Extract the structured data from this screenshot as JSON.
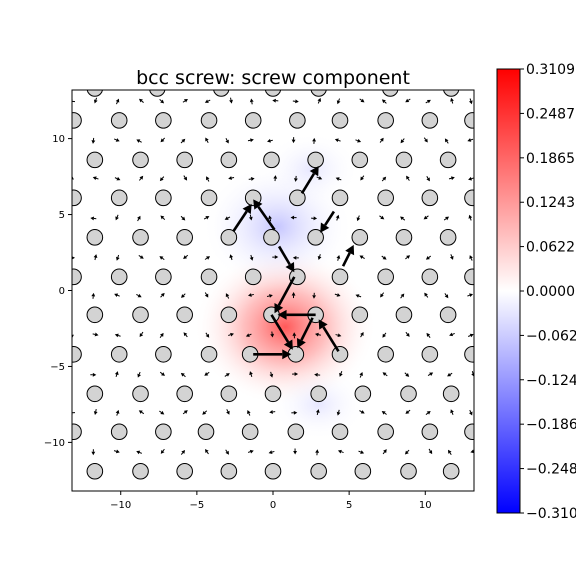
{
  "chart_data": {
    "type": "heatmap",
    "title": "bcc screw: screw component",
    "xlabel": "",
    "ylabel": "",
    "xlim": [
      -13.2,
      13.2
    ],
    "ylim": [
      -13.2,
      13.2
    ],
    "x_ticks": [
      -10,
      -5,
      0,
      5,
      10
    ],
    "y_ticks": [
      -10,
      -5,
      0,
      5,
      10
    ],
    "x_tick_labels": [
      "−10",
      "−5",
      "0",
      "5",
      "10"
    ],
    "y_tick_labels": [
      "−10",
      "−5",
      "0",
      "5",
      "10"
    ],
    "colormap": "bwr",
    "color_min": -0.3109,
    "color_max": 0.3109,
    "colorbar_ticks": [
      0.3109,
      0.2487,
      0.1865,
      0.1243,
      0.0622,
      0.0,
      -0.0622,
      -0.1243,
      -0.1865,
      -0.2487,
      -0.3109
    ],
    "colorbar_tick_labels": [
      "0.3109",
      "0.2487",
      "0.1865",
      "0.1243",
      "0.0622",
      "0.0000",
      "−0.0622",
      "−0.1243",
      "−0.1865",
      "−0.2487",
      "−0.3109"
    ],
    "colors": {
      "positive": "#ff0000",
      "zero": "#ffffff",
      "negative": "#0000ff",
      "atom_fill": "#d3d3d3",
      "arrow": "#000000"
    },
    "field_features": [
      {
        "x": 0.8,
        "y": -2.4,
        "value": 0.25
      },
      {
        "x": 0.3,
        "y": 4.2,
        "value": -0.09
      },
      {
        "x": 3.0,
        "y": -7.5,
        "value": -0.05
      },
      {
        "x": 2.5,
        "y": 8.0,
        "value": -0.03
      }
    ],
    "atoms_rows": [
      {
        "y": 13.3,
        "x": [
          -11.7,
          -7.6,
          -3.4,
          0.0,
          3.0,
          7.7,
          11.7
        ]
      },
      {
        "y": 11.2,
        "x": [
          -13.1,
          -10.1,
          -7.2,
          -4.2,
          -1.3,
          1.6,
          4.4,
          7.4,
          10.3,
          13.1
        ]
      },
      {
        "y": 8.6,
        "x": [
          -11.7,
          -8.7,
          -5.8,
          -2.9,
          -0.1,
          2.8,
          5.7,
          8.6,
          11.5
        ]
      },
      {
        "y": 6.1,
        "x": [
          -13.1,
          -10.1,
          -7.2,
          -4.2,
          -1.3,
          1.6,
          4.4,
          7.4,
          10.3,
          13.1
        ]
      },
      {
        "y": 3.5,
        "x": [
          -11.7,
          -8.7,
          -5.8,
          -2.9,
          -0.1,
          2.8,
          5.7,
          8.6,
          11.5
        ]
      },
      {
        "y": 0.9,
        "x": [
          -13.1,
          -10.1,
          -7.2,
          -4.2,
          -1.3,
          1.6,
          4.4,
          7.4,
          10.3,
          13.1
        ]
      },
      {
        "y": -1.6,
        "x": [
          -11.7,
          -8.7,
          -5.8,
          -2.9,
          -0.1,
          2.8,
          5.7,
          8.6,
          11.5
        ]
      },
      {
        "y": -4.2,
        "x": [
          -13.1,
          -10.1,
          -7.2,
          -4.2,
          -1.5,
          1.5,
          4.4,
          7.4,
          10.3,
          13.1
        ]
      },
      {
        "y": -6.8,
        "x": [
          -11.7,
          -8.7,
          -5.8,
          -2.9,
          0.0,
          3.0,
          5.9,
          8.9,
          11.7
        ]
      },
      {
        "y": -9.3,
        "x": [
          -13.1,
          -10.1,
          -7.2,
          -4.4,
          -1.5,
          1.5,
          4.4,
          7.4,
          10.3,
          13.1
        ]
      },
      {
        "y": -11.9,
        "x": [
          -11.7,
          -8.7,
          -5.8,
          -2.9,
          0.0,
          3.0,
          5.9,
          8.9,
          11.7
        ]
      }
    ],
    "strong_arrows": [
      {
        "x1": 1.4,
        "y1": 0.9,
        "x2": 0.1,
        "y2": -1.5
      },
      {
        "x1": 2.8,
        "y1": -1.6,
        "x2": 0.3,
        "y2": -1.6
      },
      {
        "x1": -1.3,
        "y1": -4.2,
        "x2": 1.2,
        "y2": -4.2
      },
      {
        "x1": -0.1,
        "y1": -1.6,
        "x2": 1.3,
        "y2": -3.9
      },
      {
        "x1": 4.3,
        "y1": -4.0,
        "x2": 3.0,
        "y2": -1.9
      },
      {
        "x1": 2.6,
        "y1": -1.8,
        "x2": 1.6,
        "y2": -3.8
      },
      {
        "x1": 0.4,
        "y1": 2.9,
        "x2": 1.4,
        "y2": 1.2
      },
      {
        "x1": 0.1,
        "y1": 4.0,
        "x2": -1.3,
        "y2": 6.0
      },
      {
        "x1": -2.6,
        "y1": 3.9,
        "x2": -1.4,
        "y2": 5.7
      },
      {
        "x1": 1.9,
        "y1": 6.4,
        "x2": 3.0,
        "y2": 8.2
      },
      {
        "x1": 4.0,
        "y1": 5.2,
        "x2": 3.1,
        "y2": 3.8
      },
      {
        "x1": 4.6,
        "y1": 1.6,
        "x2": 5.3,
        "y2": 3.0
      }
    ]
  }
}
